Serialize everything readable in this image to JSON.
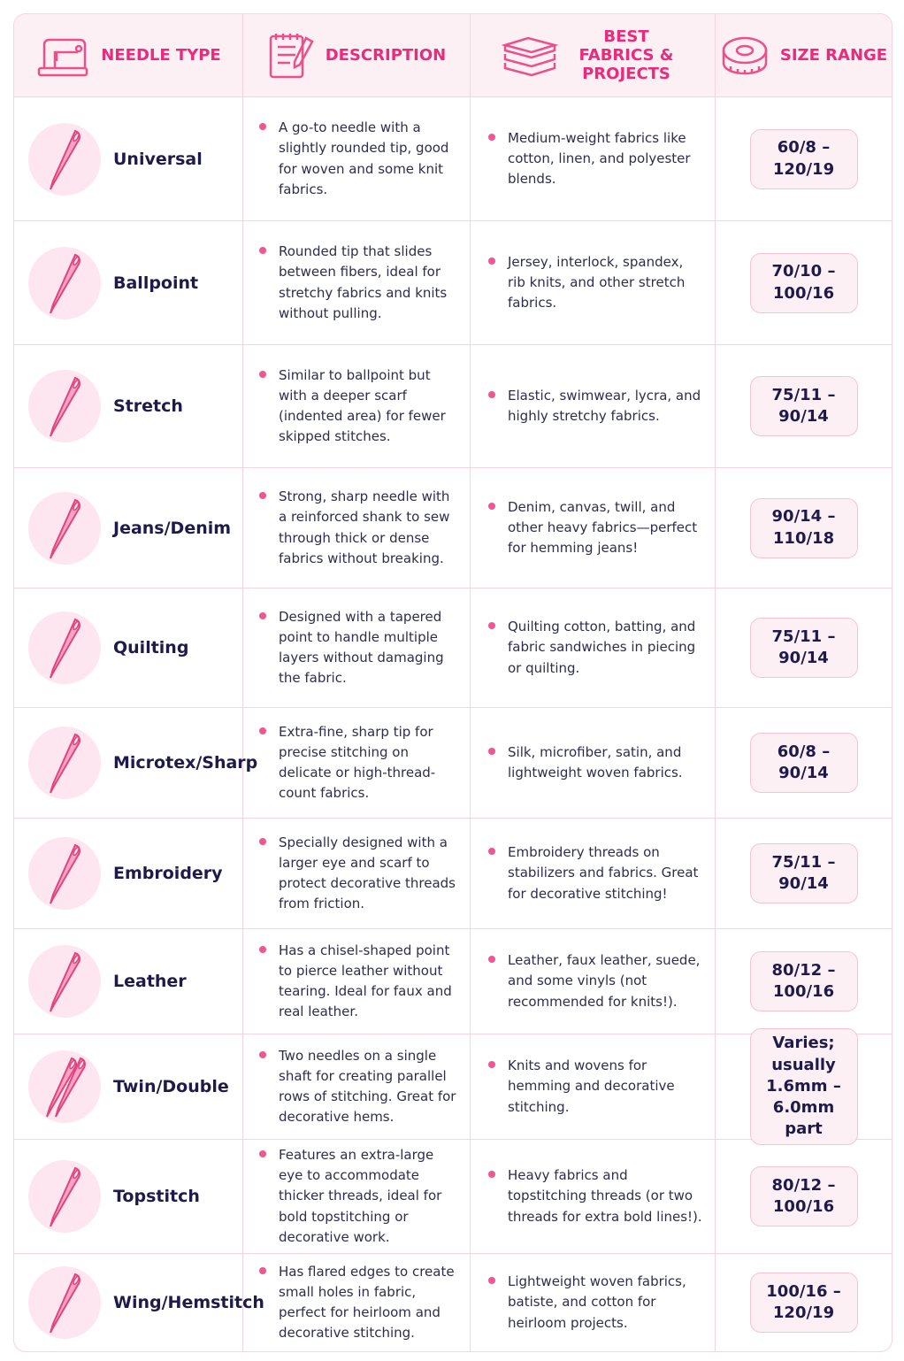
{
  "header": {
    "needle_type": "NEEDLE TYPE",
    "description": "DESCRIPTION",
    "best_fabrics": "BEST FABRICS & PROJECTS",
    "size_range": "SIZE RANGE"
  },
  "rows": [
    [
      "Universal",
      "A go-to needle with a slightly rounded tip, good for woven and some knit fabrics.",
      "Medium-weight fabrics like cotton, linen, and polyester blends.",
      "60/8 – 120/19"
    ],
    [
      "Ballpoint",
      "Rounded tip that slides between fibers, ideal for stretchy fabrics and knits without pulling.",
      "Jersey, interlock, spandex, rib knits, and other stretch fabrics.",
      "70/10 – 100/16"
    ],
    [
      "Stretch",
      "Similar to ballpoint but with a deeper scarf (indented area) for fewer skipped stitches.",
      "Elastic, swimwear, lycra, and highly stretchy fabrics.",
      "75/11 – 90/14"
    ],
    [
      "Jeans/Denim",
      "Strong, sharp needle with a reinforced shank to sew through thick or dense fabrics without breaking.",
      "Denim, canvas, twill, and other heavy fabrics—perfect for hemming jeans!",
      "90/14 – 110/18"
    ],
    [
      "Quilting",
      "Designed with a tapered point to handle multiple layers without damaging the fabric.",
      "Quilting cotton, batting, and fabric sandwiches in piecing or quilting.",
      "75/11 – 90/14"
    ],
    [
      "Microtex/Sharp",
      "Extra-fine, sharp tip for precise stitching on delicate or high-thread-count fabrics.",
      "Silk, microfiber, satin, and lightweight woven fabrics.",
      "60/8 – 90/14"
    ],
    [
      "Embroidery",
      "Specially designed with a larger eye and scarf to protect decorative threads from friction.",
      "Embroidery threads on stabilizers and fabrics. Great for decorative stitching!",
      "75/11 – 90/14"
    ],
    [
      "Leather",
      "Has a chisel-shaped point to pierce leather without tearing. Ideal for faux and real leather.",
      "Leather, faux leather, suede, and some vinyls (not recommended for knits!).",
      "80/12 – 100/16"
    ],
    [
      "Twin/Double",
      "Two needles on a single shaft for creating parallel rows of stitching. Great for decorative hems.",
      "Knits and wovens for hemming and decorative stitching.",
      "Varies; usually 1.6mm – 6.0mm part"
    ],
    [
      "Topstitch",
      "Features an extra-large eye to accommodate thicker threads, ideal for bold topstitching or decorative work.",
      "Heavy fabrics and topstitching threads (or two threads for extra bold lines!).",
      "80/12 – 100/16"
    ],
    [
      "Wing/Hemstitch",
      "Has flared edges to create small holes in fabric, perfect for heirloom and decorative stitching.",
      "Lightweight woven fabrics, batiste, and cotton for heirloom projects.",
      "100/16 – 120/19"
    ]
  ]
}
